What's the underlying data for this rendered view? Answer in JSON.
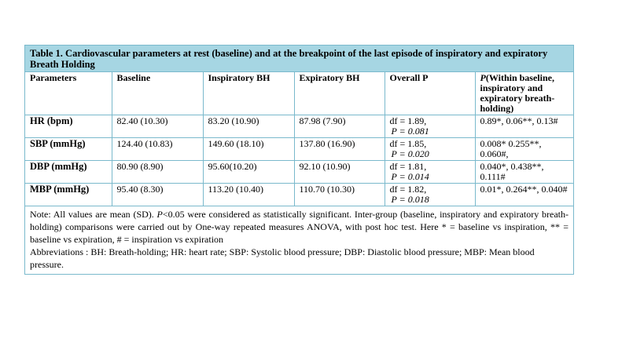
{
  "table": {
    "caption": "Table 1. Cardiovascular parameters at rest (baseline) and at the breakpoint of the last episode of inspiratory and expiratory Breath Holding",
    "headers": {
      "parameters": "Parameters",
      "baseline": "Baseline",
      "inspiratory": "Inspiratory BH",
      "expiratory": "Expiratory BH",
      "overall": "Overall P",
      "within_p": "P",
      "within_rest": "(Within baseline, inspiratory and expiratory breath-holding)"
    },
    "rows": [
      {
        "param": "HR (bpm)",
        "baseline": "82.40 (10.30)",
        "inspiratory": "83.20 (10.90)",
        "expiratory": "87.98 (7.90)",
        "df": "df = 1.89,",
        "p": "P = 0.081",
        "within": "0.89*, 0.06**, 0.13#"
      },
      {
        "param": "SBP (mmHg)",
        "baseline": "124.40 (10.83)",
        "inspiratory": "149.60 (18.10)",
        "expiratory": "137.80 (16.90)",
        "df": "df = 1.85,",
        "p": "P = 0.020",
        "within": "0.008* 0.255**, 0.060#,"
      },
      {
        "param": "DBP (mmHg)",
        "baseline": "80.90 (8.90)",
        "inspiratory": "95.60(10.20)",
        "expiratory": "92.10 (10.90)",
        "df": "df = 1.81,",
        "p": "P = 0.014",
        "within": "0.040*, 0.438**, 0.111#"
      },
      {
        "param": "MBP (mmHg)",
        "baseline": "95.40 (8.30)",
        "inspiratory": "113.20 (10.40)",
        "expiratory": "110.70 (10.30)",
        "df": "df = 1.82,",
        "p": "P = 0.018",
        "within": "0.01*, 0.264**, 0.040#"
      }
    ],
    "note": {
      "prefix": "Note: All values are mean (SD). ",
      "p_italic": "P",
      "rest": "<0.05 were considered as statistically significant. Inter-group (baseline, inspiratory and expiratory breath-holding) comparisons were carried out by One-way repeated measures ANOVA, with post hoc test. Here * = baseline vs inspiration, ** = baseline vs expiration, # = inspiration vs expiration",
      "abbreviations": "Abbreviations : BH: Breath-holding; HR: heart rate; SBP: Systolic blood pressure; DBP: Diastolic blood pressure; MBP: Mean blood pressure."
    }
  }
}
